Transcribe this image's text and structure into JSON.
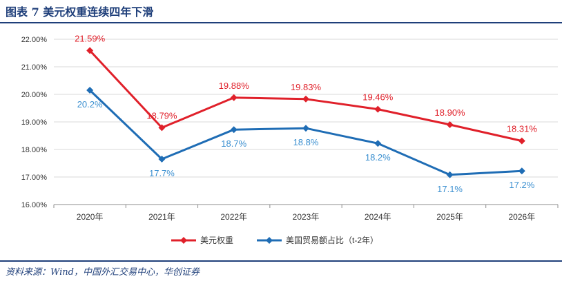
{
  "figure": {
    "title": "图表 7   美元权重连续四年下滑",
    "source": "资料来源：Wind，中国外汇交易中心，华创证券"
  },
  "chart_data": {
    "type": "line",
    "categories": [
      "2020年",
      "2021年",
      "2022年",
      "2023年",
      "2024年",
      "2025年",
      "2026年"
    ],
    "ylim": [
      16,
      22
    ],
    "yticks": [
      16,
      17,
      18,
      19,
      20,
      21,
      22
    ],
    "ytick_labels": [
      "16.00%",
      "17.00%",
      "18.00%",
      "19.00%",
      "20.00%",
      "21.00%",
      "22.00%"
    ],
    "grid": "horizontal",
    "legend_position": "bottom-center",
    "series": [
      {
        "name": "美元权重",
        "color": "#e0202a",
        "values": [
          21.59,
          18.79,
          19.88,
          19.83,
          19.46,
          18.9,
          18.31
        ],
        "labels": [
          "21.59%",
          "18.79%",
          "19.88%",
          "19.83%",
          "19.46%",
          "18.90%",
          "18.31%"
        ],
        "label_position": "above"
      },
      {
        "name": "美国贸易额占比（t-2年）",
        "color": "#1f6db5",
        "values": [
          20.15,
          17.65,
          18.72,
          18.77,
          18.22,
          17.08,
          17.22
        ],
        "labels": [
          "20.2%",
          "17.7%",
          "18.7%",
          "18.8%",
          "18.2%",
          "17.1%",
          "17.2%"
        ],
        "label_position": "below",
        "label_color": "#3a8fd0"
      }
    ]
  }
}
